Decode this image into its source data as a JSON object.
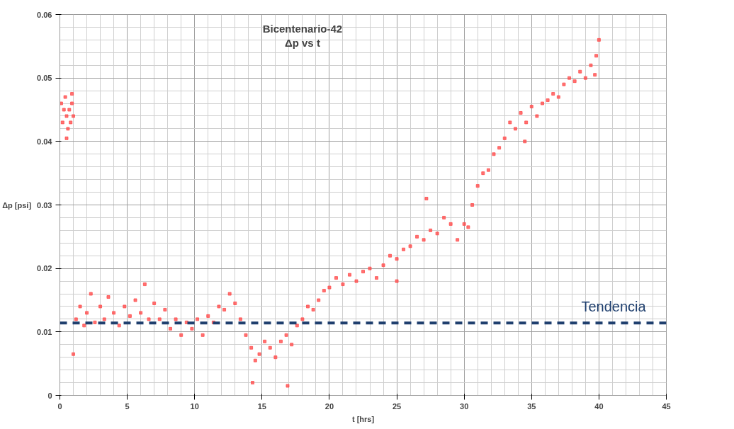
{
  "chart_data": {
    "type": "scatter",
    "title": "Bicentenario-42\nΔp vs t",
    "xlabel": "t [hrs]",
    "ylabel": "Δp [psi]",
    "xlim": [
      0,
      45
    ],
    "xticks": [
      0,
      5,
      10,
      15,
      20,
      25,
      30,
      35,
      40,
      45
    ],
    "ylim": [
      0,
      0.06
    ],
    "yticks": [
      0,
      0.01,
      0.02,
      0.03,
      0.04,
      0.05,
      0.06
    ],
    "grid": true,
    "marker": "square",
    "series": [
      {
        "color": "#ff4d4d",
        "x": [
          0.1,
          0.2,
          0.3,
          0.4,
          0.5,
          0.6,
          0.7,
          0.8,
          0.9,
          1.0,
          0.5,
          0.9,
          1.0,
          1.2,
          1.5,
          1.8,
          2.0,
          2.3,
          2.6,
          3.0,
          3.3,
          3.6,
          4.0,
          4.4,
          4.8,
          5.2,
          5.6,
          6.0,
          6.3,
          6.6,
          7.0,
          7.4,
          7.8,
          8.2,
          8.6,
          9.0,
          9.4,
          9.8,
          10.2,
          10.6,
          11.0,
          11.4,
          11.8,
          12.2,
          12.6,
          13.0,
          13.4,
          13.8,
          14.2,
          14.5,
          14.8,
          15.2,
          15.6,
          16.0,
          16.4,
          16.8,
          17.2,
          17.6,
          18.0,
          18.4,
          18.8,
          19.2,
          19.6,
          20.0,
          20.5,
          21.0,
          21.5,
          22.0,
          22.5,
          23.0,
          23.5,
          24.0,
          24.5,
          25.0,
          25.5,
          26.0,
          26.5,
          27.0,
          27.5,
          28.0,
          28.5,
          29.0,
          29.5,
          30.0,
          30.3,
          30.6,
          31.0,
          31.4,
          31.8,
          32.2,
          32.6,
          33.0,
          33.4,
          33.8,
          34.2,
          34.6,
          35.0,
          35.4,
          35.8,
          36.2,
          36.6,
          37.0,
          37.4,
          37.8,
          38.2,
          38.6,
          39.0,
          39.4,
          39.8,
          40.0,
          39.7,
          14.3,
          16.9,
          34.5,
          25.0,
          27.2
        ],
        "values": [
          0.046,
          0.043,
          0.045,
          0.047,
          0.044,
          0.042,
          0.045,
          0.043,
          0.046,
          0.044,
          0.0405,
          0.0475,
          0.0065,
          0.012,
          0.014,
          0.011,
          0.013,
          0.016,
          0.0115,
          0.014,
          0.012,
          0.0155,
          0.013,
          0.011,
          0.014,
          0.0125,
          0.015,
          0.013,
          0.0175,
          0.012,
          0.0145,
          0.012,
          0.0135,
          0.0105,
          0.012,
          0.0095,
          0.0115,
          0.0105,
          0.012,
          0.0095,
          0.0125,
          0.0115,
          0.014,
          0.0135,
          0.016,
          0.0145,
          0.012,
          0.0095,
          0.0075,
          0.0055,
          0.0065,
          0.0085,
          0.0075,
          0.006,
          0.0085,
          0.0095,
          0.008,
          0.011,
          0.012,
          0.014,
          0.0135,
          0.015,
          0.0165,
          0.017,
          0.0185,
          0.0175,
          0.019,
          0.018,
          0.0195,
          0.02,
          0.0185,
          0.0205,
          0.022,
          0.0215,
          0.023,
          0.0235,
          0.025,
          0.0245,
          0.026,
          0.0255,
          0.028,
          0.027,
          0.0245,
          0.027,
          0.0265,
          0.03,
          0.033,
          0.035,
          0.0355,
          0.038,
          0.039,
          0.0405,
          0.043,
          0.042,
          0.0445,
          0.043,
          0.0455,
          0.044,
          0.046,
          0.0465,
          0.0475,
          0.047,
          0.049,
          0.05,
          0.0495,
          0.051,
          0.05,
          0.052,
          0.0535,
          0.056,
          0.0505,
          0.002,
          0.0015,
          0.04,
          0.018,
          0.031
        ]
      }
    ],
    "ref_lines": [
      {
        "axis": "y",
        "value": 0.0114,
        "label": "Tendencia",
        "color": "#1f3f6e",
        "line_style": "dashed"
      }
    ]
  }
}
